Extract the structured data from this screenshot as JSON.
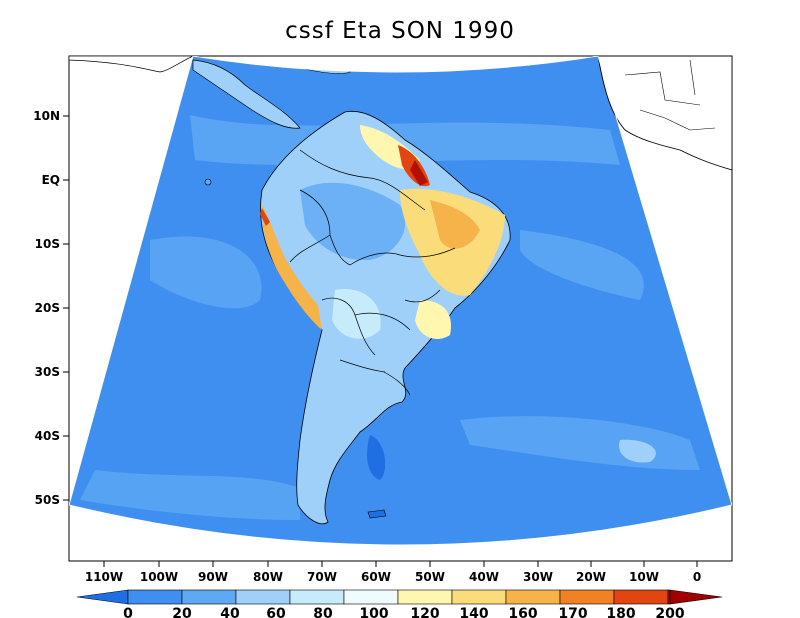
{
  "title": "cssf Eta SON 1990",
  "map": {
    "projection": "lambert-conformal",
    "region": "South America",
    "ocean_level": "0-20",
    "lat_labels": [
      "10N",
      "EQ",
      "10S",
      "20S",
      "30S",
      "40S",
      "50S"
    ],
    "lon_labels": [
      "110W",
      "100W",
      "90W",
      "80W",
      "70W",
      "60W",
      "50W",
      "40W",
      "30W",
      "20W",
      "10W",
      "0"
    ]
  },
  "colorbar": {
    "labels": [
      "0",
      "20",
      "40",
      "60",
      "80",
      "100",
      "120",
      "140",
      "160",
      "170",
      "180",
      "200"
    ],
    "colors": [
      "#1f6fe3",
      "#3f8ff0",
      "#5fa8f4",
      "#9fd0fa",
      "#c6ecfb",
      "#f0fbff",
      "#fff6b0",
      "#fbdc7a",
      "#f6b34a",
      "#f08224",
      "#e04512",
      "#b41000",
      "#a00000"
    ]
  }
}
